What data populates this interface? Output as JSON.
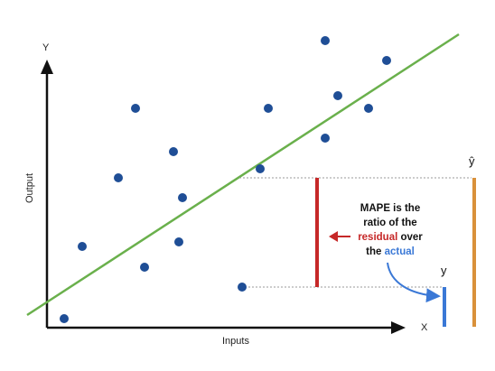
{
  "axes": {
    "y_letter": "Y",
    "x_letter": "X",
    "y_title": "Output",
    "x_title": "Inputs"
  },
  "markers": {
    "y_hat": "ŷ",
    "y": "y"
  },
  "annotation": {
    "line1": "MAPE is the",
    "line2": "ratio of the",
    "line3_highlight": "residual",
    "line3_rest": " over",
    "line4_prefix": "the ",
    "line4_highlight": "actual"
  },
  "colors": {
    "points": "#1f4e96",
    "fit_line": "#6ab04c",
    "residual": "#c62828",
    "actual": "#3a78d6",
    "predicted": "#d9913a",
    "axis": "#111111"
  },
  "icons": {
    "arrow_left": "left-arrow-icon",
    "curved_arrow": "curved-arrow-icon"
  }
}
